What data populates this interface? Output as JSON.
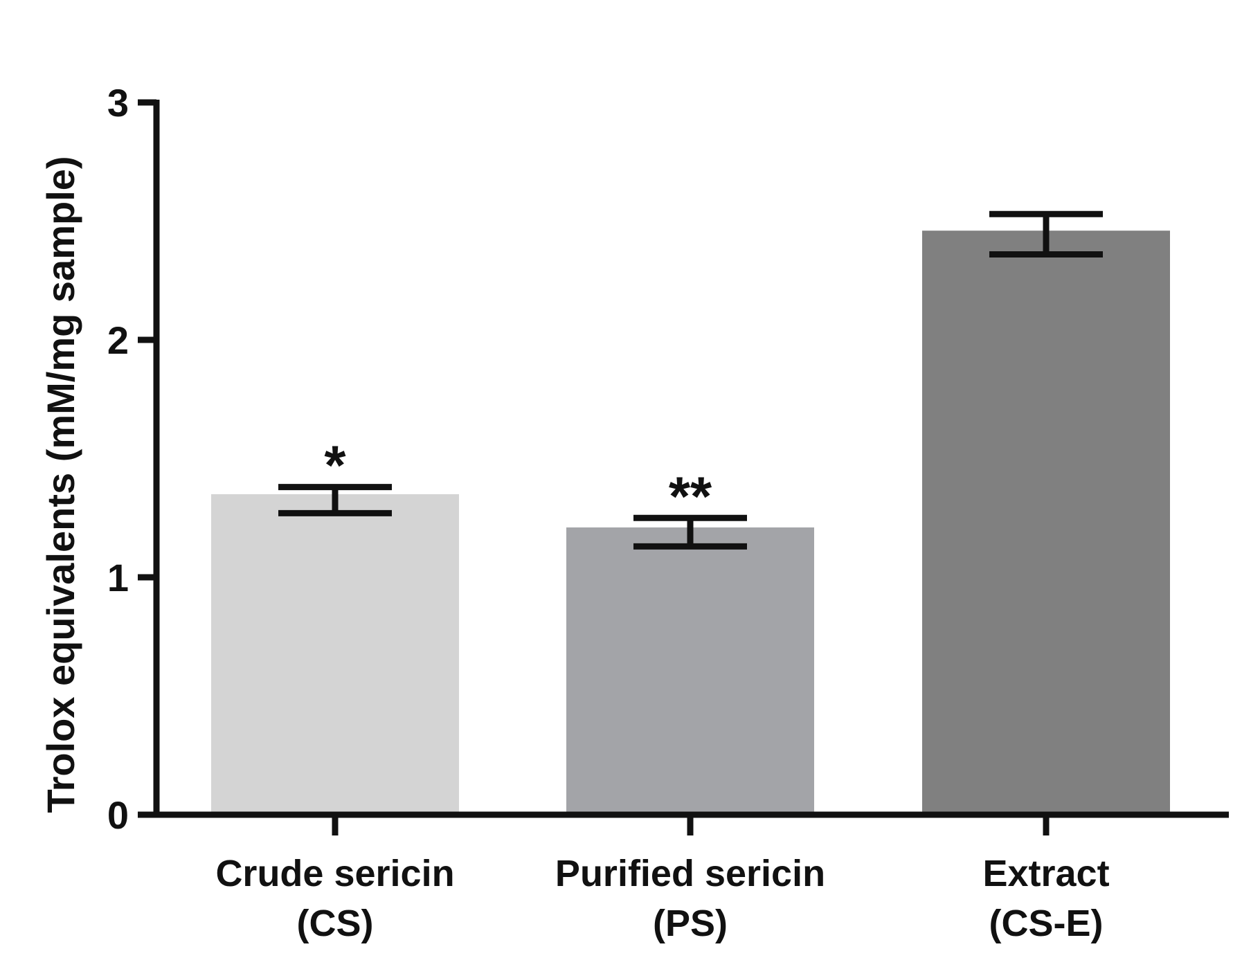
{
  "chart_data": {
    "type": "bar",
    "title": "",
    "xlabel": "",
    "ylabel": "Trolox equivalents (mM/mg sample)",
    "ylim": [
      0,
      3
    ],
    "yticks": [
      0,
      1,
      2,
      3
    ],
    "ytick_labels": [
      "0",
      "1",
      "2",
      "3"
    ],
    "grid": false,
    "categories": [
      {
        "line1": "Crude sericin",
        "line2": "(CS)"
      },
      {
        "line1": "Purified sericin",
        "line2": "(PS)"
      },
      {
        "line1": "Extract",
        "line2": "(CS-E)"
      }
    ],
    "values": [
      1.35,
      1.21,
      2.46
    ],
    "error_low": [
      1.27,
      1.13,
      2.36
    ],
    "error_high": [
      1.38,
      1.25,
      2.53
    ],
    "significance": [
      "*",
      "**",
      ""
    ],
    "colors": [
      "#d4d4d4",
      "#a3a4a8",
      "#808080"
    ],
    "axis_color": "#111111"
  }
}
